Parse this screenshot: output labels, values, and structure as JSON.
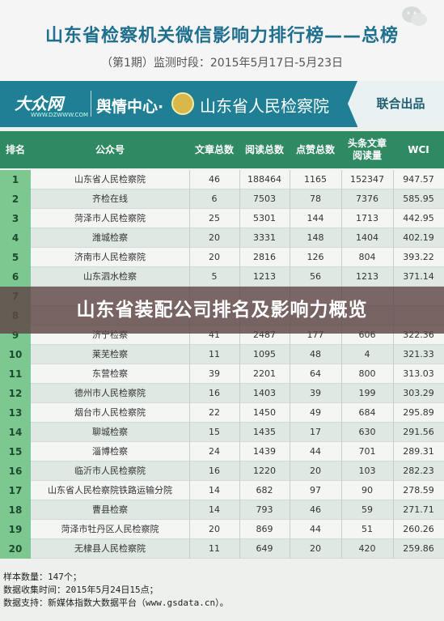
{
  "header": {
    "title": "山东省检察机关微信影响力排行榜——总榜",
    "subtitle": "（第1期）监测时段：2015年5月17日-5月23日"
  },
  "banner": {
    "logo": "大众网",
    "logo_url": "WWW.DZWWW.COM",
    "center": "舆情中心·",
    "court": "山东省人民检察院",
    "release": "联合出品"
  },
  "table": {
    "headers": [
      "排名",
      "公众号",
      "文章总数",
      "阅读总数",
      "点赞总数",
      "头条文章\n阅读量",
      "WCI"
    ],
    "rows": [
      {
        "rank": "1",
        "name": "山东省人民检察院",
        "articles": "46",
        "reads": "188464",
        "likes": "1165",
        "top_reads": "152347",
        "wci": "947.57"
      },
      {
        "rank": "2",
        "name": "齐检在线",
        "articles": "6",
        "reads": "7503",
        "likes": "78",
        "top_reads": "7376",
        "wci": "585.95"
      },
      {
        "rank": "3",
        "name": "菏泽市人民检察院",
        "articles": "25",
        "reads": "5301",
        "likes": "144",
        "top_reads": "1713",
        "wci": "442.95"
      },
      {
        "rank": "4",
        "name": "潍城检察",
        "articles": "20",
        "reads": "3331",
        "likes": "148",
        "top_reads": "1404",
        "wci": "402.19"
      },
      {
        "rank": "5",
        "name": "济南市人民检察院",
        "articles": "20",
        "reads": "2816",
        "likes": "126",
        "top_reads": "804",
        "wci": "393.22"
      },
      {
        "rank": "6",
        "name": "山东泗水检察",
        "articles": "5",
        "reads": "1213",
        "likes": "56",
        "top_reads": "1213",
        "wci": "371.14"
      },
      {
        "rank": "7",
        "name": "",
        "articles": "",
        "reads": "",
        "likes": "",
        "top_reads": "",
        "wci": ""
      },
      {
        "rank": "8",
        "name": "",
        "articles": "",
        "reads": "",
        "likes": "",
        "top_reads": "",
        "wci": ""
      },
      {
        "rank": "9",
        "name": "济宁检察",
        "articles": "41",
        "reads": "2487",
        "likes": "177",
        "top_reads": "606",
        "wci": "322.36"
      },
      {
        "rank": "10",
        "name": "莱芜检察",
        "articles": "11",
        "reads": "1095",
        "likes": "48",
        "top_reads": "4",
        "wci": "321.33"
      },
      {
        "rank": "11",
        "name": "东营检察",
        "articles": "39",
        "reads": "2201",
        "likes": "64",
        "top_reads": "800",
        "wci": "313.03"
      },
      {
        "rank": "12",
        "name": "德州市人民检察院",
        "articles": "16",
        "reads": "1403",
        "likes": "39",
        "top_reads": "199",
        "wci": "303.29"
      },
      {
        "rank": "13",
        "name": "烟台市人民检察院",
        "articles": "22",
        "reads": "1450",
        "likes": "49",
        "top_reads": "684",
        "wci": "295.89"
      },
      {
        "rank": "14",
        "name": "聊城检察",
        "articles": "15",
        "reads": "1435",
        "likes": "17",
        "top_reads": "630",
        "wci": "291.56"
      },
      {
        "rank": "15",
        "name": "淄博检察",
        "articles": "24",
        "reads": "1439",
        "likes": "44",
        "top_reads": "701",
        "wci": "289.31"
      },
      {
        "rank": "16",
        "name": "临沂市人民检察院",
        "articles": "16",
        "reads": "1220",
        "likes": "20",
        "top_reads": "103",
        "wci": "282.23"
      },
      {
        "rank": "17",
        "name": "山东省人民检察院铁路运输分院",
        "articles": "14",
        "reads": "682",
        "likes": "97",
        "top_reads": "90",
        "wci": "278.59"
      },
      {
        "rank": "18",
        "name": "曹县检察",
        "articles": "14",
        "reads": "793",
        "likes": "46",
        "top_reads": "59",
        "wci": "271.71"
      },
      {
        "rank": "19",
        "name": "菏泽市牡丹区人民检察院",
        "articles": "20",
        "reads": "869",
        "likes": "44",
        "top_reads": "51",
        "wci": "260.26"
      },
      {
        "rank": "20",
        "name": "无棣县人民检察院",
        "articles": "11",
        "reads": "649",
        "likes": "20",
        "top_reads": "420",
        "wci": "259.86"
      }
    ]
  },
  "footer": {
    "line1": "样本数量：147个；",
    "line2": "数据收集时间：2015年5月24日15点；",
    "line3": "数据支持：新媒体指数大数据平台（www.gsdata.cn）。"
  },
  "overlay": {
    "text": "山东省装配公司排名及影响力概览"
  }
}
